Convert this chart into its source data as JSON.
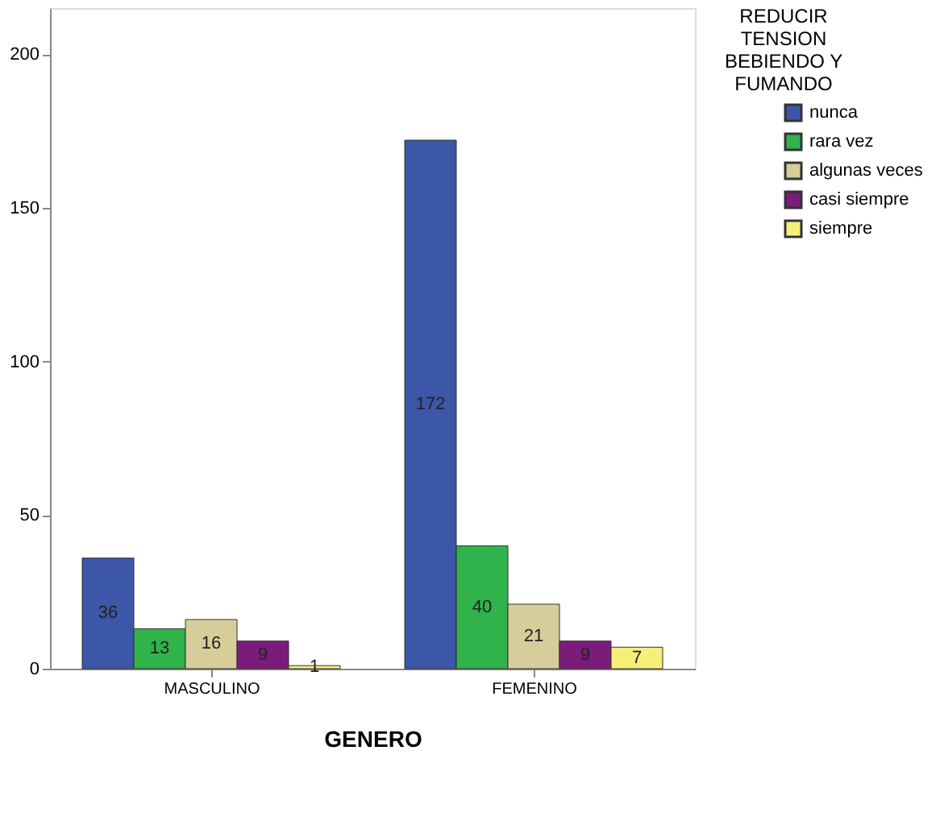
{
  "chart_data": {
    "type": "bar",
    "xlabel": "GENERO",
    "legend_title": "REDUCIR TENSION BEBIENDO Y FUMANDO",
    "categories": [
      "MASCULINO",
      "FEMENINO"
    ],
    "series": [
      {
        "name": "nunca",
        "color": "#3c56a8",
        "values": [
          36,
          172
        ]
      },
      {
        "name": "rara vez",
        "color": "#2fb34a",
        "values": [
          13,
          40
        ]
      },
      {
        "name": "algunas veces",
        "color": "#d6cd9a",
        "values": [
          16,
          21
        ]
      },
      {
        "name": "casi siempre",
        "color": "#7b1c7b",
        "values": [
          9,
          9
        ]
      },
      {
        "name": "siempre",
        "color": "#f4f07a",
        "values": [
          1,
          7
        ]
      }
    ],
    "ylim": [
      0,
      215
    ],
    "yticks": [
      0,
      50,
      100,
      150,
      200
    ],
    "data_labels": true,
    "legend": "top right",
    "grid": false
  }
}
